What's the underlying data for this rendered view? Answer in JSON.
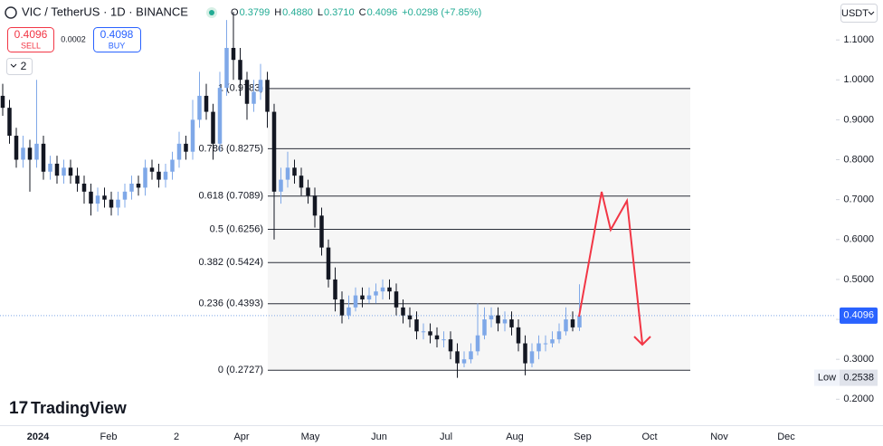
{
  "header": {
    "symbol": "VIC / TetherUS · 1D · BINANCE",
    "ohlc": [
      {
        "letter": "O",
        "value": "0.3799"
      },
      {
        "letter": "H",
        "value": "0.4880"
      },
      {
        "letter": "L",
        "value": "0.3710"
      },
      {
        "letter": "C",
        "value": "0.4096"
      }
    ],
    "change": "+0.0298 (+7.85%)",
    "sell_price": "0.4096",
    "sell": "SELL",
    "spread": "0.0002",
    "buy_price": "0.4098",
    "buy": "BUY",
    "indicators": "2",
    "currency": "USDT",
    "logo": "TradingView"
  },
  "chart_data": {
    "type": "candlestick",
    "up_color": "#7fa8e8",
    "down_color": "#131722",
    "grid": false,
    "ylim": [
      0.135,
      1.2
    ],
    "yticks": [
      {
        "value": 0.2,
        "label": "0.2000"
      },
      {
        "value": 0.3,
        "label": "0.3000"
      },
      {
        "value": 0.4,
        "label": "0.4000"
      },
      {
        "value": 0.5,
        "label": "0.5000"
      },
      {
        "value": 0.6,
        "label": "0.6000"
      },
      {
        "value": 0.7,
        "label": "0.7000"
      },
      {
        "value": 0.8,
        "label": "0.8000"
      },
      {
        "value": 0.9,
        "label": "0.9000"
      },
      {
        "value": 1.0,
        "label": "1.0000"
      },
      {
        "value": 1.1,
        "label": "1.1000"
      }
    ],
    "x_labels": [
      "2024",
      "Feb",
      "2",
      "Apr",
      "May",
      "Jun",
      "Jul",
      "Aug",
      "Sep",
      "Oct",
      "Nov",
      "Dec"
    ],
    "open": [
      0.96,
      0.93,
      0.86,
      0.8,
      0.83,
      0.8,
      0.84,
      0.77,
      0.79,
      0.76,
      0.78,
      0.76,
      0.74,
      0.72,
      0.69,
      0.71,
      0.7,
      0.68,
      0.7,
      0.72,
      0.74,
      0.73,
      0.78,
      0.77,
      0.75,
      0.77,
      0.8,
      0.84,
      0.82,
      0.9,
      0.96,
      0.92,
      0.84,
      0.98,
      1.08,
      1.05,
      1.0,
      0.94,
      0.97,
      1.0,
      0.92,
      0.72,
      0.75,
      0.78,
      0.76,
      0.73,
      0.71,
      0.66,
      0.58,
      0.5,
      0.45,
      0.41,
      0.43,
      0.46,
      0.45,
      0.46,
      0.47,
      0.48,
      0.47,
      0.43,
      0.41,
      0.4,
      0.37,
      0.37,
      0.36,
      0.35,
      0.35,
      0.32,
      0.29,
      0.3,
      0.32,
      0.36,
      0.4,
      0.41,
      0.39,
      0.4,
      0.38,
      0.34,
      0.29,
      0.32,
      0.34,
      0.34,
      0.35,
      0.37,
      0.4,
      0.3799
    ],
    "high": [
      0.99,
      0.95,
      0.88,
      0.86,
      0.85,
      1.0,
      0.86,
      0.81,
      0.81,
      0.8,
      0.8,
      0.78,
      0.76,
      0.74,
      0.73,
      0.73,
      0.72,
      0.72,
      0.74,
      0.76,
      0.76,
      0.8,
      0.8,
      0.79,
      0.79,
      0.82,
      0.87,
      0.86,
      0.95,
      1.02,
      0.99,
      0.94,
      1.02,
      1.15,
      1.17,
      1.08,
      1.02,
      1.0,
      1.04,
      1.02,
      0.94,
      0.78,
      0.82,
      0.8,
      0.78,
      0.75,
      0.73,
      0.68,
      0.6,
      0.53,
      0.47,
      0.46,
      0.48,
      0.48,
      0.48,
      0.49,
      0.5,
      0.5,
      0.49,
      0.45,
      0.43,
      0.42,
      0.39,
      0.39,
      0.38,
      0.37,
      0.37,
      0.34,
      0.32,
      0.34,
      0.44,
      0.43,
      0.43,
      0.43,
      0.42,
      0.42,
      0.4,
      0.36,
      0.34,
      0.36,
      0.36,
      0.37,
      0.39,
      0.43,
      0.42,
      0.488
    ],
    "low": [
      0.91,
      0.84,
      0.78,
      0.78,
      0.72,
      0.78,
      0.75,
      0.75,
      0.74,
      0.74,
      0.74,
      0.72,
      0.69,
      0.66,
      0.67,
      0.68,
      0.66,
      0.66,
      0.68,
      0.7,
      0.71,
      0.71,
      0.75,
      0.73,
      0.73,
      0.75,
      0.78,
      0.8,
      0.8,
      0.88,
      0.9,
      0.8,
      0.82,
      0.96,
      1.0,
      0.96,
      0.9,
      0.92,
      0.95,
      0.88,
      0.6,
      0.69,
      0.73,
      0.74,
      0.71,
      0.69,
      0.63,
      0.56,
      0.48,
      0.42,
      0.39,
      0.4,
      0.42,
      0.43,
      0.44,
      0.44,
      0.45,
      0.45,
      0.41,
      0.39,
      0.38,
      0.35,
      0.35,
      0.34,
      0.33,
      0.33,
      0.3,
      0.2538,
      0.28,
      0.29,
      0.31,
      0.35,
      0.38,
      0.37,
      0.37,
      0.36,
      0.32,
      0.26,
      0.28,
      0.3,
      0.32,
      0.33,
      0.34,
      0.36,
      0.37,
      0.371
    ],
    "close": [
      0.93,
      0.86,
      0.8,
      0.83,
      0.8,
      0.84,
      0.77,
      0.79,
      0.76,
      0.78,
      0.76,
      0.74,
      0.72,
      0.69,
      0.71,
      0.7,
      0.68,
      0.7,
      0.72,
      0.74,
      0.73,
      0.78,
      0.77,
      0.75,
      0.77,
      0.8,
      0.84,
      0.82,
      0.9,
      0.96,
      0.92,
      0.84,
      0.98,
      1.08,
      1.05,
      1.0,
      0.94,
      0.97,
      1.0,
      0.92,
      0.72,
      0.75,
      0.78,
      0.76,
      0.73,
      0.71,
      0.66,
      0.58,
      0.5,
      0.45,
      0.41,
      0.43,
      0.46,
      0.45,
      0.46,
      0.47,
      0.48,
      0.47,
      0.43,
      0.41,
      0.4,
      0.37,
      0.37,
      0.36,
      0.35,
      0.35,
      0.32,
      0.29,
      0.3,
      0.32,
      0.36,
      0.4,
      0.41,
      0.39,
      0.4,
      0.38,
      0.34,
      0.29,
      0.32,
      0.34,
      0.34,
      0.35,
      0.37,
      0.4,
      0.38,
      0.4096
    ],
    "fib_levels": [
      {
        "label": "1 (0.9783)",
        "value": 0.9783
      },
      {
        "label": "0.786 (0.8275)",
        "value": 0.8275
      },
      {
        "label": "0.618 (0.7089)",
        "value": 0.7089
      },
      {
        "label": "0.5 (0.6256)",
        "value": 0.6256
      },
      {
        "label": "0.382 (0.5424)",
        "value": 0.5424
      },
      {
        "label": "0.236 (0.4393)",
        "value": 0.4393
      },
      {
        "label": "0 (0.2727)",
        "value": 0.2727
      }
    ],
    "last_price": 0.4096,
    "low_label": "Low",
    "low_value": 0.2538
  }
}
